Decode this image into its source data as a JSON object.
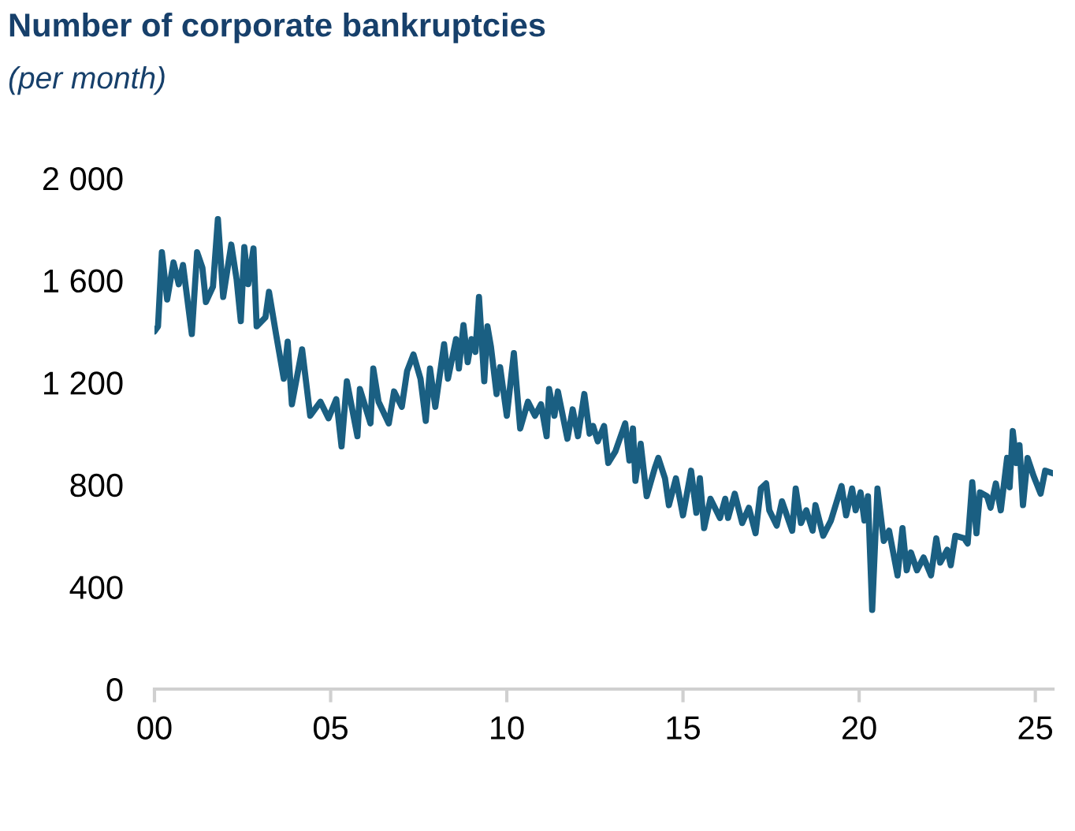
{
  "chart_data": {
    "type": "line",
    "title": "Number of corporate bankruptcies",
    "subtitle": "(per month)",
    "xlim": [
      0,
      25.5
    ],
    "xticks": [
      {
        "value": 0,
        "label": "00"
      },
      {
        "value": 5,
        "label": "05"
      },
      {
        "value": 10,
        "label": "10"
      },
      {
        "value": 15,
        "label": "15"
      },
      {
        "value": 20,
        "label": "20"
      },
      {
        "value": 25,
        "label": "25"
      }
    ],
    "ylim": [
      0,
      2000
    ],
    "yticks": [
      {
        "value": 0,
        "label": "0"
      },
      {
        "value": 400,
        "label": "400"
      },
      {
        "value": 800,
        "label": "800"
      },
      {
        "value": 1200,
        "label": "1 200"
      },
      {
        "value": 1600,
        "label": "1 600"
      },
      {
        "value": 2000,
        "label": "2 000"
      }
    ],
    "grid": false,
    "marker": "none",
    "line_style": "solid",
    "series": [
      {
        "color": "#1a5f82",
        "x": [
          0.0,
          0.1,
          0.21,
          0.36,
          0.54,
          0.69,
          0.81,
          1.06,
          1.21,
          1.36,
          1.46,
          1.66,
          1.8,
          1.95,
          2.18,
          2.33,
          2.45,
          2.55,
          2.66,
          2.81,
          2.9,
          3.15,
          3.25,
          3.45,
          3.67,
          3.78,
          3.9,
          4.19,
          4.42,
          4.71,
          4.94,
          5.16,
          5.31,
          5.46,
          5.76,
          5.83,
          6.13,
          6.21,
          6.36,
          6.65,
          6.8,
          7.02,
          7.17,
          7.35,
          7.55,
          7.7,
          7.82,
          7.97,
          8.22,
          8.33,
          8.56,
          8.64,
          8.77,
          8.89,
          9.0,
          9.11,
          9.21,
          9.36,
          9.45,
          9.55,
          9.71,
          9.81,
          10.0,
          10.2,
          10.38,
          10.6,
          10.8,
          10.97,
          11.13,
          11.2,
          11.35,
          11.45,
          11.72,
          11.87,
          12.02,
          12.2,
          12.35,
          12.45,
          12.58,
          12.76,
          12.88,
          13.08,
          13.36,
          13.48,
          13.58,
          13.65,
          13.8,
          13.97,
          14.2,
          14.3,
          14.49,
          14.6,
          14.8,
          15.0,
          15.23,
          15.38,
          15.48,
          15.6,
          15.78,
          16.05,
          16.2,
          16.28,
          16.47,
          16.68,
          16.87,
          17.06,
          17.21,
          17.36,
          17.45,
          17.66,
          17.81,
          18.1,
          18.2,
          18.35,
          18.5,
          18.68,
          18.76,
          18.98,
          19.2,
          19.5,
          19.63,
          19.8,
          19.9,
          20.04,
          20.15,
          20.25,
          20.37,
          20.52,
          20.7,
          20.85,
          21.09,
          21.23,
          21.35,
          21.47,
          21.64,
          21.83,
          22.04,
          22.19,
          22.3,
          22.5,
          22.6,
          22.73,
          22.98,
          23.08,
          23.21,
          23.33,
          23.43,
          23.63,
          23.73,
          23.88,
          24.02,
          24.2,
          24.27,
          24.36,
          24.46,
          24.55,
          24.65,
          24.78,
          24.95,
          25.15,
          25.28,
          25.5
        ],
        "values": [
          1400,
          1420,
          1710,
          1525,
          1670,
          1585,
          1660,
          1390,
          1710,
          1650,
          1515,
          1575,
          1840,
          1535,
          1740,
          1605,
          1440,
          1730,
          1585,
          1725,
          1420,
          1455,
          1555,
          1390,
          1215,
          1360,
          1115,
          1330,
          1070,
          1125,
          1060,
          1135,
          950,
          1205,
          990,
          1175,
          1040,
          1255,
          1125,
          1040,
          1165,
          1105,
          1245,
          1310,
          1215,
          1050,
          1255,
          1105,
          1350,
          1215,
          1370,
          1255,
          1425,
          1280,
          1370,
          1320,
          1535,
          1205,
          1420,
          1340,
          1155,
          1260,
          1070,
          1315,
          1020,
          1125,
          1070,
          1115,
          990,
          1175,
          1070,
          1165,
          980,
          1095,
          990,
          1155,
          1000,
          1030,
          970,
          1030,
          885,
          930,
          1040,
          895,
          1020,
          815,
          960,
          755,
          865,
          905,
          825,
          720,
          825,
          680,
          855,
          690,
          825,
          630,
          745,
          670,
          745,
          670,
          765,
          650,
          710,
          610,
          785,
          805,
          700,
          640,
          735,
          620,
          785,
          650,
          700,
          620,
          720,
          600,
          660,
          795,
          680,
          785,
          700,
          770,
          660,
          755,
          310,
          785,
          580,
          620,
          445,
          630,
          465,
          535,
          465,
          515,
          445,
          590,
          495,
          545,
          485,
          600,
          590,
          570,
          810,
          610,
          770,
          755,
          710,
          805,
          700,
          905,
          790,
          1010,
          885,
          955,
          720,
          905,
          835,
          765,
          855,
          845
        ]
      }
    ]
  }
}
